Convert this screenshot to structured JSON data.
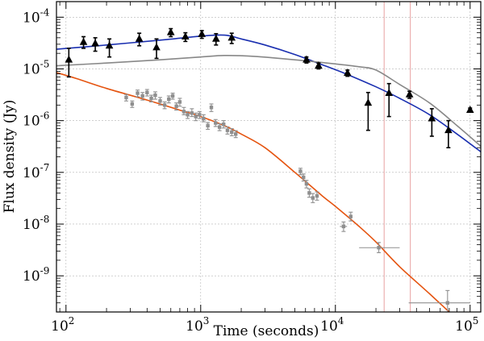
{
  "chart_data": {
    "type": "scatter",
    "title": "",
    "xlabel": "Time (seconds)",
    "ylabel": "Flux density (Jy)",
    "xscale": "log",
    "yscale": "log",
    "xlim": [
      85,
      120000
    ],
    "ylim": [
      2e-10,
      0.0002
    ],
    "grid": true,
    "x_ticks": [
      {
        "value": 100,
        "base": "10",
        "exp": "2"
      },
      {
        "value": 1000,
        "base": "10",
        "exp": "3"
      },
      {
        "value": 10000,
        "base": "10",
        "exp": "4"
      },
      {
        "value": 100000,
        "base": "10",
        "exp": "5"
      }
    ],
    "y_ticks": [
      {
        "value": 1e-09,
        "base": "10",
        "exp": "-9"
      },
      {
        "value": 1e-08,
        "base": "10",
        "exp": "-8"
      },
      {
        "value": 1e-07,
        "base": "10",
        "exp": "-7"
      },
      {
        "value": 1e-06,
        "base": "10",
        "exp": "-6"
      },
      {
        "value": 1e-05,
        "base": "10",
        "exp": "-5"
      },
      {
        "value": 0.0001,
        "base": "10",
        "exp": "-4"
      }
    ],
    "vertical_lines": [
      {
        "x": 23000,
        "color": "#e8a0a0"
      },
      {
        "x": 36000,
        "color": "#e8a0a0"
      }
    ],
    "curves": [
      {
        "name": "blue model",
        "color": "#1a2fb0",
        "points": [
          [
            85,
            2.4e-05
          ],
          [
            200,
            2.9e-05
          ],
          [
            500,
            3.6e-05
          ],
          [
            1000,
            4.3e-05
          ],
          [
            1500,
            4.5e-05
          ],
          [
            2000,
            3.8e-05
          ],
          [
            3000,
            2.9e-05
          ],
          [
            5000,
            1.9e-05
          ],
          [
            8000,
            1.2e-05
          ],
          [
            12000,
            8e-06
          ],
          [
            20000,
            4.5e-06
          ],
          [
            30000,
            2.7e-06
          ],
          [
            50000,
            1.3e-06
          ],
          [
            80000,
            5.5e-07
          ],
          [
            120000,
            2.5e-07
          ]
        ]
      },
      {
        "name": "gray model",
        "color": "#888888",
        "points": [
          [
            85,
            1.15e-05
          ],
          [
            200,
            1.3e-05
          ],
          [
            500,
            1.5e-05
          ],
          [
            1000,
            1.7e-05
          ],
          [
            1500,
            1.82e-05
          ],
          [
            2500,
            1.75e-05
          ],
          [
            5000,
            1.5e-05
          ],
          [
            10000,
            1.25e-05
          ],
          [
            15000,
            1.1e-05
          ],
          [
            20000,
            9.5e-06
          ],
          [
            30000,
            5e-06
          ],
          [
            50000,
            2.2e-06
          ],
          [
            80000,
            8e-07
          ],
          [
            120000,
            3.2e-07
          ]
        ]
      },
      {
        "name": "orange model",
        "color": "#e55410",
        "points": [
          [
            85,
            8.5e-06
          ],
          [
            120,
            6.5e-06
          ],
          [
            200,
            4.2e-06
          ],
          [
            400,
            2.5e-06
          ],
          [
            700,
            1.6e-06
          ],
          [
            1000,
            1.2e-06
          ],
          [
            1500,
            8e-07
          ],
          [
            2000,
            5.5e-07
          ],
          [
            3000,
            3e-07
          ],
          [
            5000,
            1e-07
          ],
          [
            8000,
            3.5e-08
          ],
          [
            10000,
            2.2e-08
          ],
          [
            15000,
            9e-09
          ],
          [
            20000,
            4.5e-09
          ],
          [
            30000,
            1.5e-09
          ],
          [
            50000,
            4.5e-10
          ],
          [
            70000,
            2e-10
          ]
        ]
      }
    ],
    "series": [
      {
        "name": "black triangles",
        "color": "#000000",
        "marker": "triangle",
        "points": [
          {
            "x": 105,
            "y": 1.5e-05,
            "ylo": 7e-06,
            "yhi": 2.5e-05
          },
          {
            "x": 135,
            "y": 3.3e-05,
            "ylo": 2.5e-05,
            "yhi": 4.2e-05
          },
          {
            "x": 165,
            "y": 3.1e-05,
            "ylo": 2.2e-05,
            "yhi": 4e-05
          },
          {
            "x": 210,
            "y": 2.8e-05,
            "ylo": 1.7e-05,
            "yhi": 3.8e-05
          },
          {
            "x": 350,
            "y": 3.8e-05,
            "ylo": 2.8e-05,
            "yhi": 4.9e-05
          },
          {
            "x": 470,
            "y": 2.6e-05,
            "ylo": 1.6e-05,
            "yhi": 3.8e-05
          },
          {
            "x": 600,
            "y": 5.1e-05,
            "ylo": 4.2e-05,
            "yhi": 6e-05
          },
          {
            "x": 770,
            "y": 4.2e-05,
            "ylo": 3.4e-05,
            "yhi": 5e-05
          },
          {
            "x": 1020,
            "y": 4.7e-05,
            "ylo": 3.9e-05,
            "yhi": 5.5e-05
          },
          {
            "x": 1300,
            "y": 3.8e-05,
            "ylo": 2.9e-05,
            "yhi": 4.8e-05
          },
          {
            "x": 1700,
            "y": 4e-05,
            "ylo": 3.1e-05,
            "yhi": 4.9e-05
          },
          {
            "x": 6100,
            "y": 1.5e-05,
            "ylo": 1.3e-05,
            "yhi": 1.7e-05
          },
          {
            "x": 7500,
            "y": 1.15e-05,
            "ylo": 1e-05,
            "yhi": 1.3e-05
          },
          {
            "x": 12300,
            "y": 8.3e-06,
            "ylo": 7.2e-06,
            "yhi": 9.5e-06
          },
          {
            "x": 17500,
            "y": 2.2e-06,
            "ylo": 6.5e-07,
            "yhi": 3.5e-06
          },
          {
            "x": 25000,
            "y": 3.4e-06,
            "ylo": 1.2e-06,
            "yhi": 5.2e-06
          },
          {
            "x": 35500,
            "y": 3.2e-06,
            "ylo": 2.7e-06,
            "yhi": 3.7e-06
          },
          {
            "x": 52000,
            "y": 1.1e-06,
            "ylo": 5e-07,
            "yhi": 1.7e-06
          },
          {
            "x": 69000,
            "y": 6.5e-07,
            "ylo": 3e-07,
            "yhi": 1e-06
          },
          {
            "x": 100000,
            "y": 1.6e-06,
            "ylo": 1.5e-06,
            "yhi": 1.75e-06
          }
        ]
      },
      {
        "name": "gray squares",
        "color": "#8f8f8f",
        "marker": "square",
        "points": [
          {
            "x": 280,
            "y": 2.8e-06,
            "ylo": 2.4e-06,
            "yhi": 3.2e-06
          },
          {
            "x": 310,
            "y": 2.1e-06,
            "ylo": 1.8e-06,
            "yhi": 2.4e-06
          },
          {
            "x": 340,
            "y": 3.4e-06,
            "ylo": 2.9e-06,
            "yhi": 3.9e-06
          },
          {
            "x": 370,
            "y": 3e-06,
            "ylo": 2.5e-06,
            "yhi": 3.5e-06
          },
          {
            "x": 400,
            "y": 3.5e-06,
            "ylo": 3e-06,
            "yhi": 4e-06
          },
          {
            "x": 430,
            "y": 2.7e-06,
            "ylo": 2.3e-06,
            "yhi": 3.1e-06
          },
          {
            "x": 460,
            "y": 3.1e-06,
            "ylo": 2.6e-06,
            "yhi": 3.6e-06
          },
          {
            "x": 500,
            "y": 2.4e-06,
            "ylo": 2e-06,
            "yhi": 2.8e-06
          },
          {
            "x": 540,
            "y": 2e-06,
            "ylo": 1.7e-06,
            "yhi": 2.3e-06
          },
          {
            "x": 580,
            "y": 2.6e-06,
            "ylo": 2.2e-06,
            "yhi": 3e-06
          },
          {
            "x": 620,
            "y": 3e-06,
            "ylo": 2.6e-06,
            "yhi": 3.4e-06
          },
          {
            "x": 660,
            "y": 1.9e-06,
            "ylo": 1.6e-06,
            "yhi": 2.2e-06
          },
          {
            "x": 700,
            "y": 2.3e-06,
            "ylo": 1.9e-06,
            "yhi": 2.7e-06
          },
          {
            "x": 750,
            "y": 1.5e-06,
            "ylo": 1.3e-06,
            "yhi": 1.8e-06
          },
          {
            "x": 800,
            "y": 1.3e-06,
            "ylo": 1.1e-06,
            "yhi": 1.5e-06
          },
          {
            "x": 860,
            "y": 1.4e-06,
            "ylo": 1.2e-06,
            "yhi": 1.7e-06
          },
          {
            "x": 920,
            "y": 1.2e-06,
            "ylo": 1e-06,
            "yhi": 1.4e-06
          },
          {
            "x": 980,
            "y": 1.3e-06,
            "ylo": 1.1e-06,
            "yhi": 1.5e-06
          },
          {
            "x": 1050,
            "y": 1.1e-06,
            "ylo": 9.5e-07,
            "yhi": 1.3e-06
          },
          {
            "x": 1130,
            "y": 8e-07,
            "ylo": 6.8e-07,
            "yhi": 9.2e-07
          },
          {
            "x": 1200,
            "y": 1.8e-06,
            "ylo": 1.5e-06,
            "yhi": 2.1e-06
          },
          {
            "x": 1290,
            "y": 9e-07,
            "ylo": 7.7e-07,
            "yhi": 1.05e-06
          },
          {
            "x": 1380,
            "y": 7.5e-07,
            "ylo": 6.4e-07,
            "yhi": 8.7e-07
          },
          {
            "x": 1480,
            "y": 8.5e-07,
            "ylo": 7.2e-07,
            "yhi": 1e-06
          },
          {
            "x": 1580,
            "y": 6.5e-07,
            "ylo": 5.5e-07,
            "yhi": 7.6e-07
          },
          {
            "x": 1700,
            "y": 6e-07,
            "ylo": 5.1e-07,
            "yhi": 7e-07
          },
          {
            "x": 1820,
            "y": 5.5e-07,
            "ylo": 4.7e-07,
            "yhi": 6.4e-07
          },
          {
            "x": 5500,
            "y": 1.05e-07,
            "ylo": 9e-08,
            "yhi": 1.2e-07
          },
          {
            "x": 5800,
            "y": 8e-08,
            "ylo": 6.8e-08,
            "yhi": 9.3e-08
          },
          {
            "x": 6100,
            "y": 6e-08,
            "ylo": 5e-08,
            "yhi": 7e-08
          },
          {
            "x": 6400,
            "y": 4e-08,
            "ylo": 3.3e-08,
            "yhi": 4.8e-08
          },
          {
            "x": 6800,
            "y": 3.2e-08,
            "ylo": 2.6e-08,
            "yhi": 3.9e-08
          },
          {
            "x": 7300,
            "y": 3.5e-08,
            "ylo": 2.9e-08,
            "yhi": 4.2e-08
          },
          {
            "x": 11500,
            "y": 9e-09,
            "ylo": 7.2e-09,
            "yhi": 1.1e-08,
            "xlo": 10800,
            "xhi": 12200
          },
          {
            "x": 13000,
            "y": 1.4e-08,
            "ylo": 1.15e-08,
            "yhi": 1.7e-08
          },
          {
            "x": 21000,
            "y": 3.5e-09,
            "ylo": 2.8e-09,
            "yhi": 4.4e-09,
            "xlo": 15000,
            "xhi": 30000
          },
          {
            "x": 68000,
            "y": 3e-10,
            "ylo": 2e-10,
            "yhi": 5.2e-10,
            "xlo": 35000,
            "xhi": 100000
          }
        ]
      }
    ]
  }
}
